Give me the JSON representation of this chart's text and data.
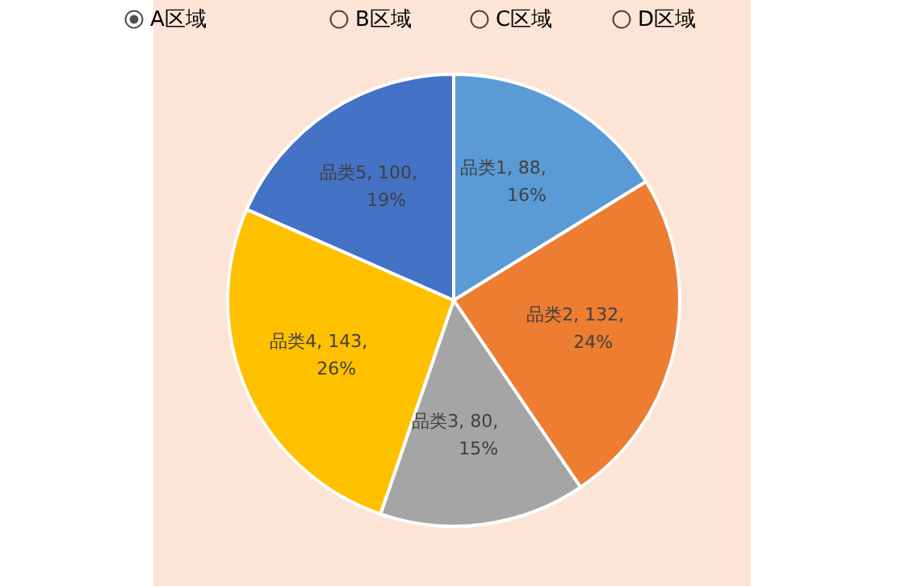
{
  "chart_data": {
    "type": "pie",
    "categories": [
      "品类1",
      "品类2",
      "品类3",
      "品类4",
      "品类5"
    ],
    "values": [
      88,
      132,
      80,
      143,
      100
    ],
    "colors": [
      "#5b9bd5",
      "#ed7d31",
      "#a5a5a5",
      "#ffc000",
      "#4472c4"
    ],
    "value_labels": [
      ", 88, 16%",
      ", 132, 24%",
      ", 80, 15%",
      ", 143, 26%",
      ", 100, 19%"
    ],
    "annotations": [
      "A区域",
      "B区域",
      "C区域",
      "D区域"
    ]
  }
}
